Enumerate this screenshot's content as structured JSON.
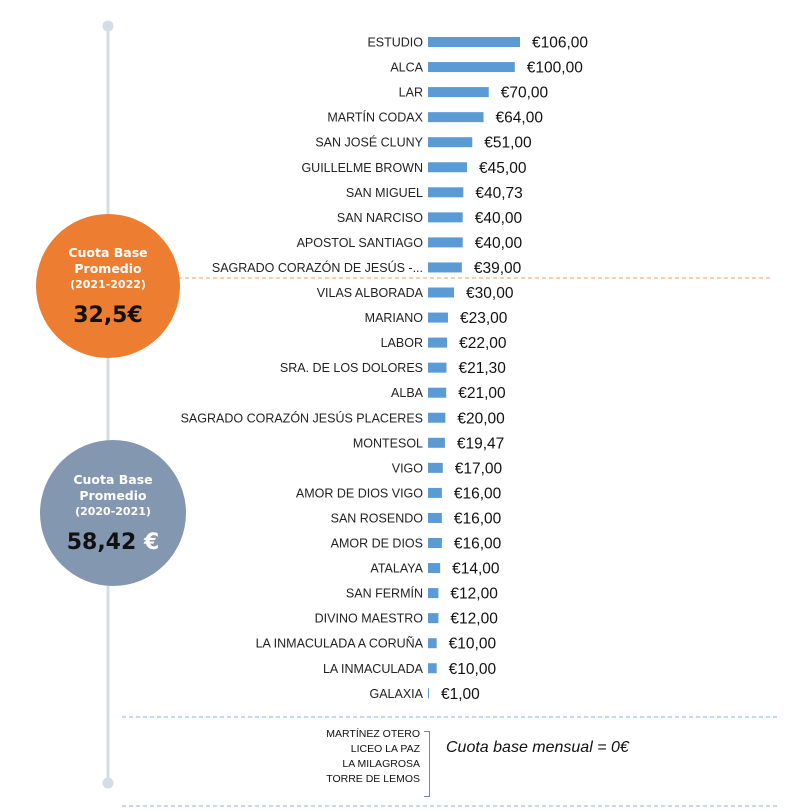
{
  "chart_data": {
    "type": "bar",
    "orientation": "horizontal",
    "categories": [
      "ESTUDIO",
      "ALCA",
      "LAR",
      "MARTÍN CODAX",
      "SAN JOSÉ CLUNY",
      "GUILLELME BROWN",
      "SAN MIGUEL",
      "SAN NARCISO",
      "APOSTOL SANTIAGO",
      "SAGRADO CORAZÓN DE JESÚS -...",
      "VILAS ALBORADA",
      "MARIANO",
      "LABOR",
      "SRA. DE LOS DOLORES",
      "ALBA",
      "SAGRADO CORAZÓN JESÚS PLACERES",
      "MONTESOL",
      "VIGO",
      "AMOR DE DIOS VIGO",
      "SAN ROSENDO",
      "AMOR DE DIOS",
      "ATALAYA",
      "SAN FERMÍN",
      "DIVINO MAESTRO",
      "LA INMACULADA A CORUÑA",
      "LA INMACULADA",
      "GALAXIA"
    ],
    "values": [
      106,
      100,
      70,
      64,
      51,
      45,
      40.73,
      40,
      40,
      39,
      30,
      23,
      22,
      21.3,
      21,
      20,
      19.47,
      17,
      16,
      16,
      16,
      14,
      12,
      12,
      10,
      10,
      1
    ],
    "value_labels": [
      "€106,00",
      "€100,00",
      "€70,00",
      "€64,00",
      "€51,00",
      "€45,00",
      "€40,73",
      "€40,00",
      "€40,00",
      "€39,00",
      "€30,00",
      "€23,00",
      "€22,00",
      "€21,30",
      "€21,00",
      "€20,00",
      "€19,47",
      "€17,00",
      "€16,00",
      "€16,00",
      "€16,00",
      "€14,00",
      "€12,00",
      "€12,00",
      "€10,00",
      "€10,00",
      "€1,00"
    ],
    "bar_color": "#5b9bd5",
    "grid": false,
    "legend": "none"
  },
  "averages": {
    "current": {
      "title_line1": "Cuota Base",
      "title_line2": "Promedio",
      "period": "(2021-2022)",
      "value": "32,5€",
      "color": "#ed7d31"
    },
    "previous": {
      "title_line1": "Cuota Base",
      "title_line2": "Promedio",
      "period": "(2020-2021)",
      "value_number": "58,42",
      "currency": "€",
      "color": "#8497b0"
    }
  },
  "zero_fee": {
    "schools": [
      "MARTÍNEZ OTERO",
      "LICEO LA PAZ",
      "LA MILAGROSA",
      "TORRE DE LEMOS"
    ],
    "note": "Cuota base mensual = 0€"
  },
  "colors": {
    "divider_orange": "#f4b183",
    "divider_blue": "#9dc3e6",
    "timeline": "#d6dce5"
  }
}
